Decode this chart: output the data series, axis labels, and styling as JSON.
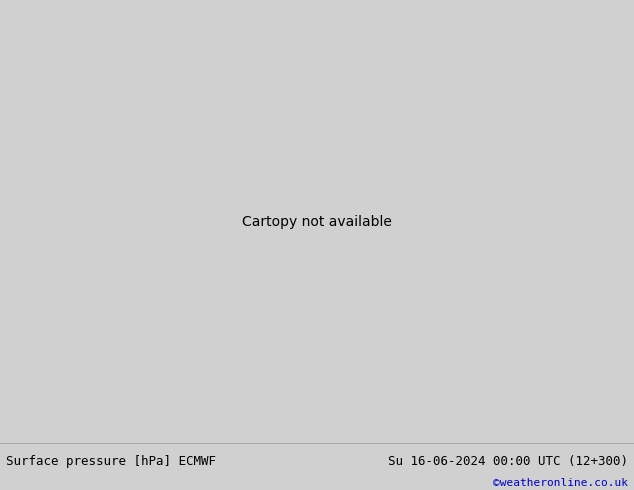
{
  "title_left": "Surface pressure [hPa] ECMWF",
  "title_right": "Su 16-06-2024 00:00 UTC (12+300)",
  "credit": "©weatheronline.co.uk",
  "figsize": [
    6.34,
    4.9
  ],
  "dpi": 100,
  "lon_min": -30,
  "lon_max": 50,
  "lat_min": 28,
  "lat_max": 73,
  "ocean_color": "#d4dce8",
  "land_gray_color": "#b4b4b4",
  "land_green_color": "#b0cc88",
  "border_color": "#787878",
  "footer_bg": "#d0d0d0",
  "title_fontsize": 9,
  "credit_fontsize": 8
}
